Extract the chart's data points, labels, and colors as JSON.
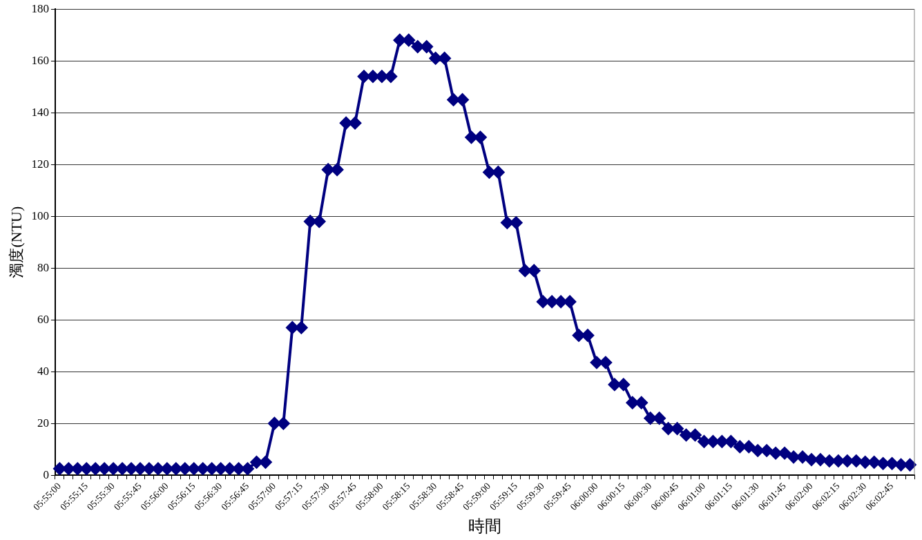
{
  "chart_data": {
    "type": "line",
    "xlabel": "時間",
    "ylabel": "濁度(NTU)",
    "categories": [
      "05:55:00",
      null,
      null,
      "05:55:15",
      null,
      null,
      "05:55:30",
      null,
      null,
      "05:55:45",
      null,
      null,
      "05:56:00",
      null,
      null,
      "05:56:15",
      null,
      null,
      "05:56:30",
      null,
      null,
      "05:56:45",
      null,
      null,
      "05:57:00",
      null,
      null,
      "05:57:15",
      null,
      null,
      "05:57:30",
      null,
      null,
      "05:57:45",
      null,
      null,
      "05:58:00",
      null,
      null,
      "05:58:15",
      null,
      null,
      "05:58:30",
      null,
      null,
      "05:58:45",
      null,
      null,
      "05:59:00",
      null,
      null,
      "05:59:15",
      null,
      null,
      "05:59:30",
      null,
      null,
      "05:59:45",
      null,
      null,
      "06:00:00",
      null,
      null,
      "06:00:15",
      null,
      null,
      "06:00:30",
      null,
      null,
      "06:00:45",
      null,
      null,
      "06:01:00",
      null,
      null,
      "06:01:15",
      null,
      null,
      "06:01:30",
      null,
      null,
      "06:01:45",
      null,
      null,
      "06:02:00",
      null,
      null,
      "06:02:15",
      null,
      null,
      "06:02:30",
      null,
      null,
      "06:02:45",
      null,
      null
    ],
    "series": [
      {
        "color": "#000080",
        "values": [
          2.5,
          2.5,
          2.5,
          2.5,
          2.5,
          2.5,
          2.5,
          2.5,
          2.5,
          2.5,
          2.5,
          2.5,
          2.5,
          2.5,
          2.5,
          2.5,
          2.5,
          2.5,
          2.5,
          2.5,
          2.5,
          2.5,
          5,
          5,
          20,
          20,
          57,
          57,
          98,
          98,
          118,
          118,
          136,
          136,
          154,
          154,
          154,
          154,
          168,
          168,
          165.5,
          165.5,
          161,
          161,
          145,
          145,
          130.5,
          130.5,
          117,
          117,
          97.5,
          97.5,
          79,
          79,
          67,
          67,
          67,
          67,
          54,
          54,
          43.5,
          43.5,
          35,
          35,
          28,
          28,
          22,
          22,
          18,
          18,
          15.5,
          15.5,
          13,
          13,
          13,
          13,
          11,
          11,
          9.5,
          9.5,
          8.5,
          8.5,
          7,
          7,
          6,
          6,
          5.5,
          5.5,
          5.5,
          5.5,
          5,
          5,
          4.5,
          4.5,
          4,
          4
        ]
      }
    ],
    "ylim": [
      0,
      180
    ],
    "yticks": [
      0,
      20,
      40,
      60,
      80,
      100,
      120,
      140,
      160,
      180
    ],
    "grid": "y",
    "legend": false,
    "marker": "diamond",
    "line_style": "solid"
  }
}
